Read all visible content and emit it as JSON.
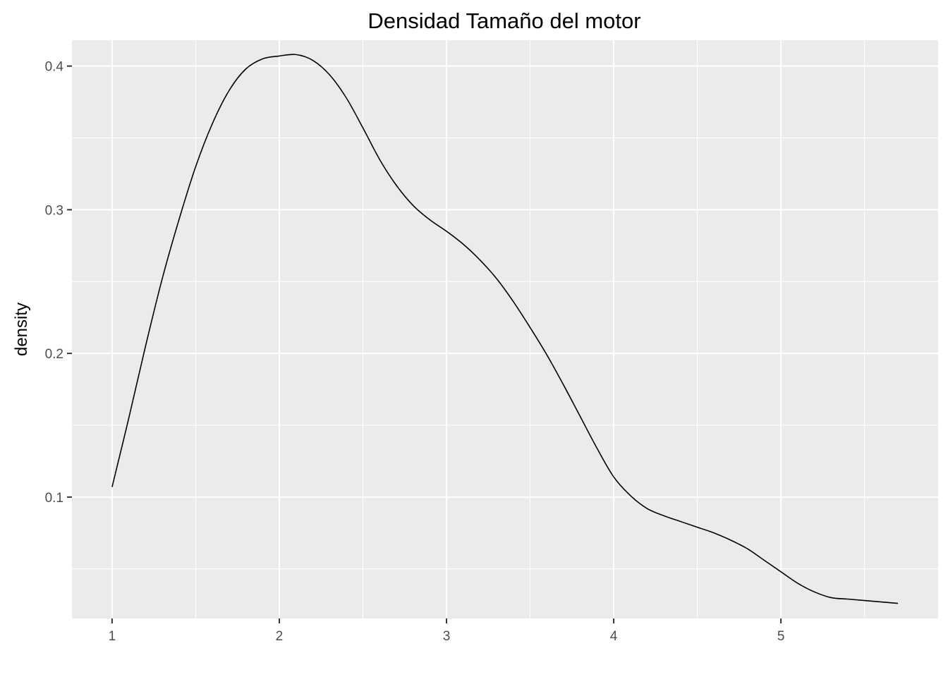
{
  "chart_data": {
    "type": "line",
    "title": "Densidad Tamaño del motor",
    "xlabel": "",
    "ylabel": "density",
    "xlim": [
      0.76,
      5.94
    ],
    "ylim": [
      0.0155,
      0.418
    ],
    "x_ticks": [
      1,
      2,
      3,
      4,
      5
    ],
    "x_minor_ticks": [
      1.5,
      2.5,
      3.5,
      4.5,
      5.5
    ],
    "y_ticks": [
      0.1,
      0.2,
      0.3,
      0.4
    ],
    "y_minor_ticks": [
      0.05,
      0.15,
      0.25,
      0.35
    ],
    "x_tick_labels": [
      "1",
      "2",
      "3",
      "4",
      "5"
    ],
    "y_tick_labels": [
      "0.1",
      "0.2",
      "0.3",
      "0.4"
    ],
    "grid": true,
    "colors": {
      "panel_background": "#ebebeb",
      "grid": "#ffffff",
      "line": "#000000"
    },
    "series": [
      {
        "x": [
          1.0,
          1.1,
          1.2,
          1.3,
          1.4,
          1.5,
          1.6,
          1.7,
          1.8,
          1.9,
          2.0,
          2.1,
          2.2,
          2.3,
          2.4,
          2.5,
          2.6,
          2.7,
          2.8,
          2.9,
          3.0,
          3.1,
          3.2,
          3.3,
          3.4,
          3.5,
          3.6,
          3.7,
          3.8,
          3.9,
          4.0,
          4.1,
          4.2,
          4.3,
          4.4,
          4.5,
          4.6,
          4.7,
          4.8,
          4.9,
          5.0,
          5.1,
          5.2,
          5.3,
          5.4,
          5.5,
          5.6,
          5.7
        ],
        "y": [
          0.107,
          0.155,
          0.205,
          0.252,
          0.293,
          0.33,
          0.36,
          0.383,
          0.398,
          0.405,
          0.407,
          0.408,
          0.404,
          0.394,
          0.378,
          0.357,
          0.335,
          0.317,
          0.303,
          0.293,
          0.285,
          0.276,
          0.265,
          0.252,
          0.236,
          0.218,
          0.199,
          0.178,
          0.156,
          0.134,
          0.114,
          0.101,
          0.092,
          0.087,
          0.083,
          0.079,
          0.075,
          0.07,
          0.064,
          0.056,
          0.048,
          0.04,
          0.034,
          0.03,
          0.029,
          0.028,
          0.027,
          0.026
        ]
      }
    ]
  }
}
